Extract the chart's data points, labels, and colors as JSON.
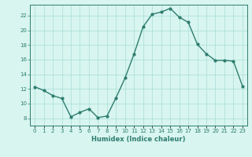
{
  "x": [
    0,
    1,
    2,
    3,
    4,
    5,
    6,
    7,
    8,
    9,
    10,
    11,
    12,
    13,
    14,
    15,
    16,
    17,
    18,
    19,
    20,
    21,
    22,
    23
  ],
  "y": [
    12.3,
    11.8,
    11.1,
    10.7,
    8.2,
    8.8,
    9.3,
    8.1,
    8.3,
    10.8,
    13.5,
    16.8,
    20.5,
    22.2,
    22.5,
    23.0,
    21.8,
    21.1,
    18.1,
    16.8,
    15.9,
    15.9,
    15.8,
    12.4
  ],
  "xlabel": "Humidex (Indice chaleur)",
  "line_color": "#2e7d6e",
  "bg_color": "#d8f5f0",
  "grid_color": "#a8ddd6",
  "ylim": [
    7,
    23.5
  ],
  "xlim": [
    -0.5,
    23.5
  ],
  "yticks": [
    8,
    10,
    12,
    14,
    16,
    18,
    20,
    22
  ],
  "xticks": [
    0,
    1,
    2,
    3,
    4,
    5,
    6,
    7,
    8,
    9,
    10,
    11,
    12,
    13,
    14,
    15,
    16,
    17,
    18,
    19,
    20,
    21,
    22,
    23
  ],
  "xtick_labels": [
    "0",
    "1",
    "2",
    "3",
    "4",
    "5",
    "6",
    "7",
    "8",
    "9",
    "10",
    "11",
    "12",
    "13",
    "14",
    "15",
    "16",
    "17",
    "18",
    "19",
    "20",
    "21",
    "22",
    "23"
  ],
  "marker": "o",
  "markersize": 2.0,
  "linewidth": 1.0,
  "tick_fontsize": 5.0,
  "xlabel_fontsize": 6.0
}
